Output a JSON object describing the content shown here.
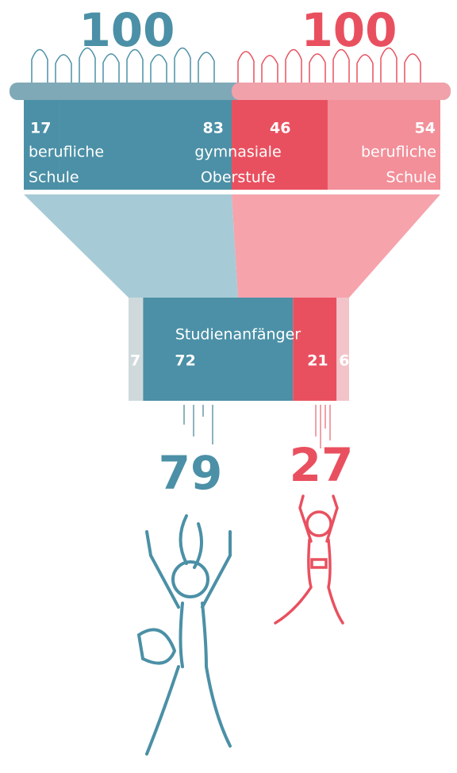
{
  "funnel": {
    "left_total": 100,
    "right_total": 100,
    "top_segments": [
      17,
      83,
      46,
      54
    ],
    "top_colors": [
      "#4b90a6",
      "#4b90a6",
      "#e9505f",
      "#f28f99"
    ],
    "labels": [
      [
        "berufliche",
        "Schule"
      ],
      [
        "gymnasiale",
        "Oberstufe"
      ],
      [
        "berufliche",
        "Schule"
      ]
    ],
    "stage_label": "Studienanfänger",
    "bottom_segments": [
      7,
      72,
      21,
      6
    ],
    "bottom_colors": [
      "#cfd9dc",
      "#4b90a6",
      "#e9505f",
      "#f2c4c9"
    ],
    "left_result": 79,
    "right_result": 27,
    "left_color": "#4b90a6",
    "right_color": "#e9505f"
  }
}
